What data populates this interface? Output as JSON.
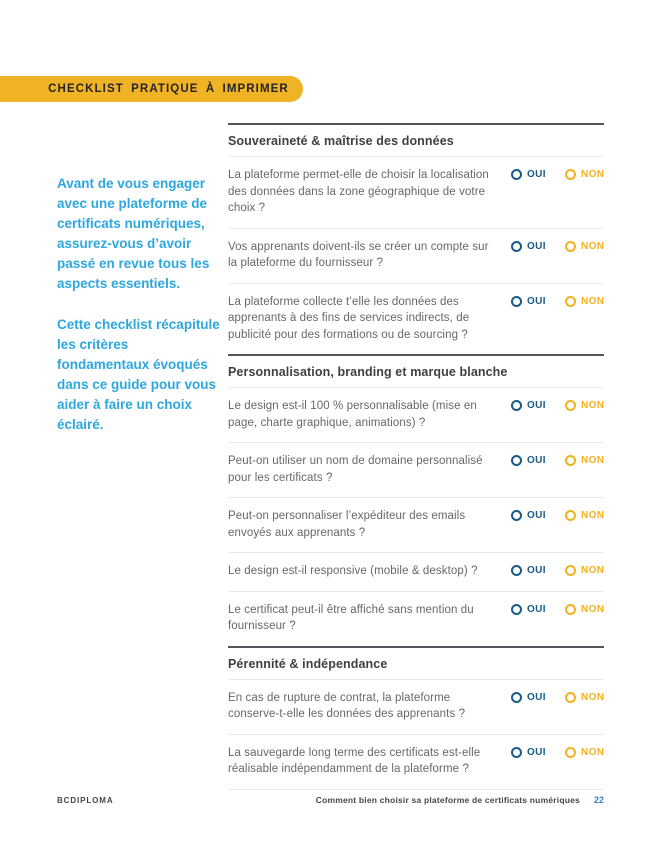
{
  "badge": {
    "label": "CHECKLIST PRATIQUE À IMPRIMER"
  },
  "intro": {
    "paragraph1": "Avant de vous engager avec une plateforme de certificats numériques, assurez-vous d’avoir passé en revue tous les aspects essentiels.",
    "paragraph2": "Cette checklist récapitule les critères fondamentaux évoqués dans ce guide pour vous aider à faire un choix éclairé."
  },
  "checklist": {
    "oui_label": "OUI",
    "non_label": "NON",
    "colors": {
      "badge_yellow": "#F0B325",
      "intro_blue": "#2EA7E0",
      "oui_blue": "#1A5A89",
      "non_yellow": "#F1B21E"
    },
    "sections": [
      {
        "title": "Souveraineté & maîtrise des données",
        "items": [
          {
            "question": "La plateforme permet-elle de choisir la localisation des données dans la zone géographique de votre choix ?"
          },
          {
            "question": "Vos apprenants doivent-ils se créer un compte sur la plateforme du fournisseur ?"
          },
          {
            "question": "La plateforme collecte t’elle les données des apprenants à des fins de services indirects, de publicité pour des formations ou de sourcing ?"
          }
        ]
      },
      {
        "title": "Personnalisation, branding et marque blanche",
        "items": [
          {
            "question": "Le design est-il 100 % personnalisable (mise en page, charte graphique, animations) ?"
          },
          {
            "question": "Peut-on utiliser un nom de domaine personnalisé pour les certificats ?"
          },
          {
            "question": "Peut-on personnaliser l’expéditeur des emails envoyés aux apprenants ?"
          },
          {
            "question": "Le design est-il responsive (mobile & desktop) ?"
          },
          {
            "question": "Le certificat peut-il être affiché sans mention du fournisseur ?"
          }
        ]
      },
      {
        "title": "Pérennité & indépendance",
        "items": [
          {
            "question": "En cas de rupture de contrat, la plateforme conserve-t-elle les données des apprenants ?"
          },
          {
            "question": "La sauvegarde long terme des certificats est-elle réalisable indépendamment de la plateforme ?"
          }
        ]
      }
    ]
  },
  "footer": {
    "brand": "BCDIPLOMA",
    "document_title": "Comment bien choisir sa plateforme de certificats numériques",
    "page_number": "22"
  }
}
